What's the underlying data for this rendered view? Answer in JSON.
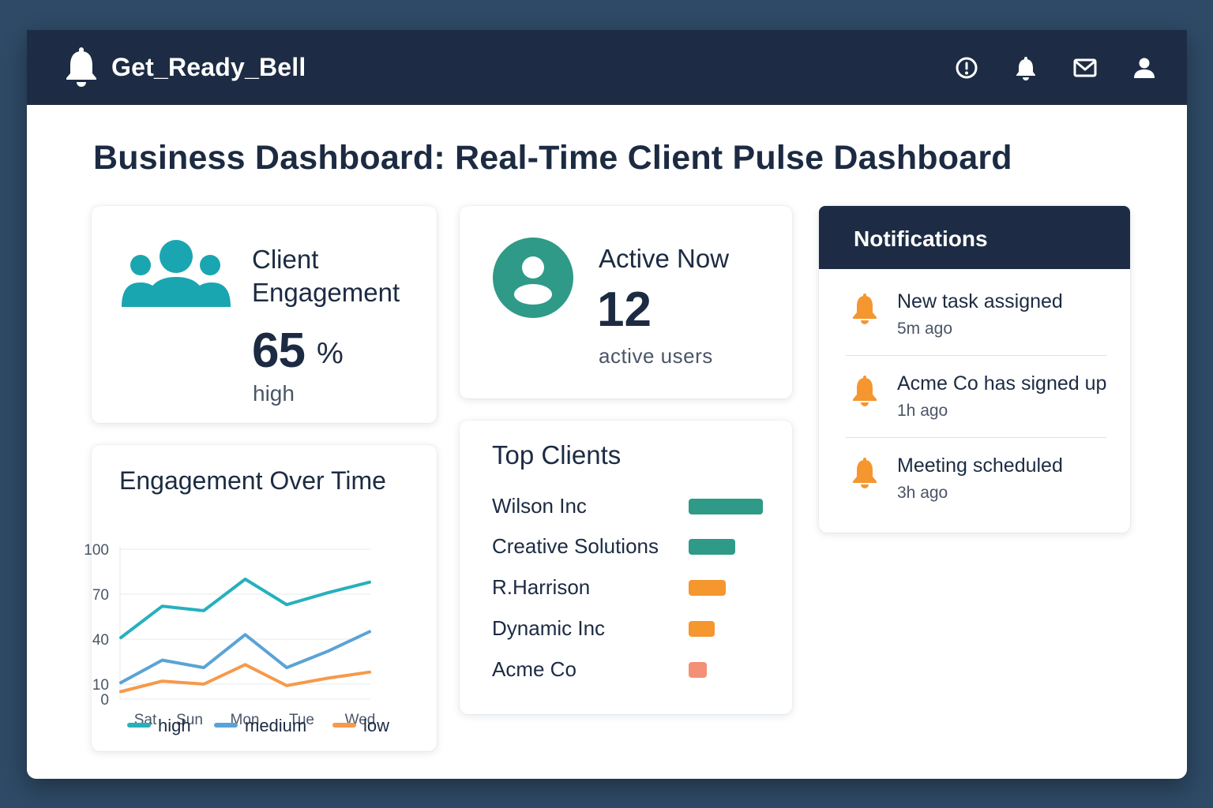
{
  "app": {
    "name": "Get_Ready_Bell",
    "top_actions": [
      {
        "icon": "alert-circle-icon"
      },
      {
        "icon": "bell-icon"
      },
      {
        "icon": "mail-icon"
      },
      {
        "icon": "user-icon"
      }
    ]
  },
  "page": {
    "title": "Business Dashboard: Real-Time Client Pulse Dashboard"
  },
  "engagement_card": {
    "title": "Client Engagement",
    "value": "65",
    "unit": "%",
    "level": "high",
    "icon": "people-icon"
  },
  "active_card": {
    "title": "Active Now",
    "value": "12",
    "subtitle": "active users",
    "icon": "user-circle-icon"
  },
  "chart_card": {
    "title": "Engagement Over Time"
  },
  "chart_data": {
    "type": "line",
    "title": "Engagement Over Time",
    "xlabel": "",
    "ylabel": "",
    "y_ticks": [
      0,
      10,
      40,
      70,
      100
    ],
    "x_ticks": [
      "Sat",
      "Sun",
      "Mon",
      "Tue",
      "Wed"
    ],
    "grid": true,
    "legend_position": "bottom",
    "series": [
      {
        "name": "high",
        "color": "#26b0bd",
        "values": [
          41,
          62,
          59,
          80,
          63,
          71,
          78
        ]
      },
      {
        "name": "medium",
        "color": "#5aa3d6",
        "values": [
          11,
          26,
          21,
          43,
          21,
          32,
          45
        ]
      },
      {
        "name": "low",
        "color": "#f59a4a",
        "values": [
          5,
          12,
          10,
          23,
          9,
          14,
          18
        ]
      }
    ]
  },
  "top_clients": {
    "title": "Top Clients",
    "clients": [
      {
        "name": "Wilson Inc",
        "score": 1.0,
        "color": "#2f9a87"
      },
      {
        "name": "Creative Solutions",
        "score": 0.63,
        "color": "#2f9a87"
      },
      {
        "name": "R.Harrison",
        "score": 0.5,
        "color": "#f5962f"
      },
      {
        "name": "Dynamic Inc",
        "score": 0.35,
        "color": "#f5962f"
      },
      {
        "name": "Acme Co",
        "score": 0.24,
        "color": "#f39076"
      }
    ]
  },
  "notifications": {
    "title": "Notifications",
    "items": [
      {
        "text": "New task assigned",
        "time": "5m ago",
        "icon": "bell-icon"
      },
      {
        "text": "Acme Co has signed up",
        "time": "1h ago",
        "icon": "bell-icon"
      },
      {
        "text": "Meeting scheduled",
        "time": "3h ago",
        "icon": "bell-icon"
      }
    ]
  },
  "colors": {
    "header": "#1d2c44",
    "accent_teal": "#1aa6b0",
    "accent_green": "#2f9a87",
    "accent_orange": "#f5962f"
  }
}
